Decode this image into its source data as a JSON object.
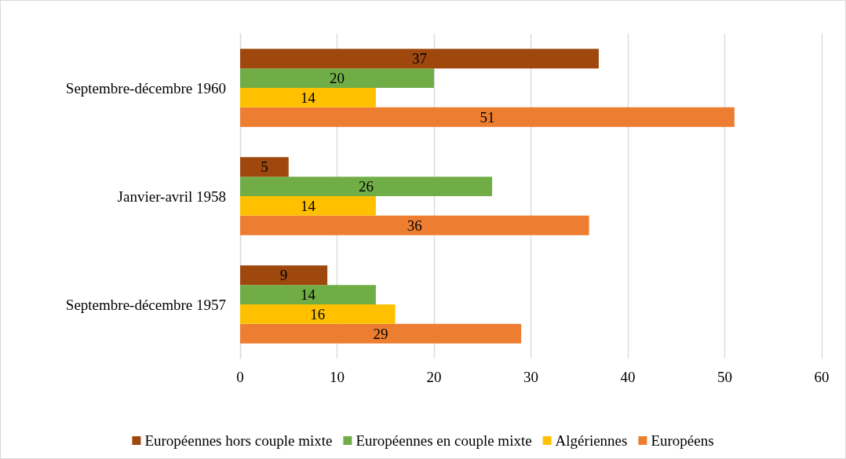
{
  "chart_data": {
    "type": "bar",
    "orientation": "horizontal",
    "categories": [
      "Septembre-décembre 1960",
      "Janvier-avril 1958",
      "Septembre-décembre 1957"
    ],
    "series": [
      {
        "name": "Européennes hors couple mixte",
        "color": "#9e480e",
        "values": [
          37,
          5,
          9
        ]
      },
      {
        "name": "Européennes en couple mixte",
        "color": "#70ad47",
        "values": [
          20,
          26,
          14
        ]
      },
      {
        "name": "Algériennes",
        "color": "#ffc000",
        "values": [
          14,
          14,
          16
        ]
      },
      {
        "name": "Européens",
        "color": "#ed7d31",
        "values": [
          51,
          36,
          29
        ]
      }
    ],
    "xlim": [
      0,
      60
    ],
    "xticks": [
      0,
      10,
      20,
      30,
      40,
      50,
      60
    ],
    "grid": "x",
    "legend": "bottom",
    "data_labels": true
  }
}
